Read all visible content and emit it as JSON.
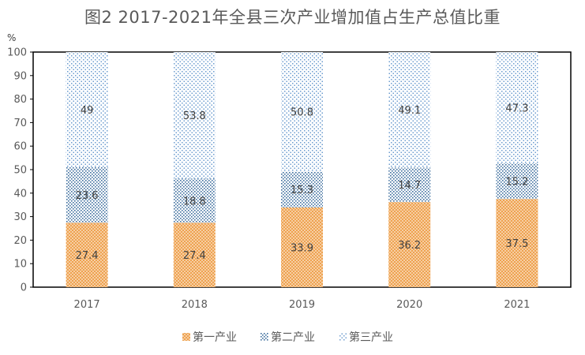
{
  "chart_data": {
    "type": "bar",
    "stacked": true,
    "title": "图2 2017-2021年全县三次产业增加值占生产总值比重",
    "ylabel": "%",
    "xlabel": "",
    "ylim": [
      0,
      100
    ],
    "yticks": [
      0,
      10,
      20,
      30,
      40,
      50,
      60,
      70,
      80,
      90,
      100
    ],
    "categories": [
      "2017",
      "2018",
      "2019",
      "2020",
      "2021"
    ],
    "series": [
      {
        "name": "第一产业",
        "values": [
          27.4,
          27.4,
          33.9,
          36.2,
          37.5
        ],
        "color": "#ED9F4A"
      },
      {
        "name": "第二产业",
        "values": [
          23.6,
          18.8,
          15.3,
          14.7,
          15.2
        ],
        "color": "#4A78A8"
      },
      {
        "name": "第三产业",
        "values": [
          49,
          53.8,
          50.8,
          49.1,
          47.3
        ],
        "color": "#7FA9D8"
      }
    ],
    "legend_position": "bottom",
    "grid": false
  }
}
